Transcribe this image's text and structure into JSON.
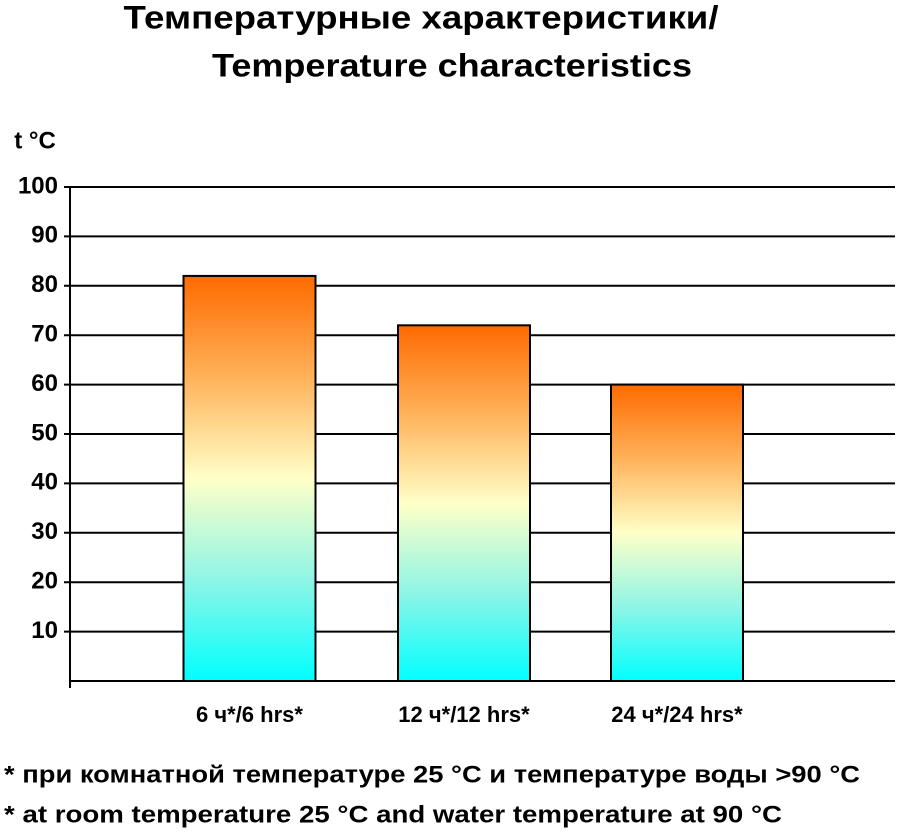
{
  "chart_data": {
    "type": "bar",
    "title": [
      "Температурные характеристики/",
      "Temperature characteristics"
    ],
    "y_label": "t °C",
    "categories": [
      "6 ч*/6 hrs*",
      "12 ч*/12 hrs*",
      "24 ч*/24 hrs*"
    ],
    "values": [
      82,
      72,
      60
    ],
    "ylim": [
      0,
      100
    ],
    "yticks": [
      10,
      20,
      30,
      40,
      50,
      60,
      70,
      80,
      90,
      100
    ],
    "grid": true,
    "notes": [
      "* при комнатной температуре 25 °C и температуре воды >90 °C",
      "* at room temperature 25 °C and water temperature at 90 °C"
    ]
  }
}
